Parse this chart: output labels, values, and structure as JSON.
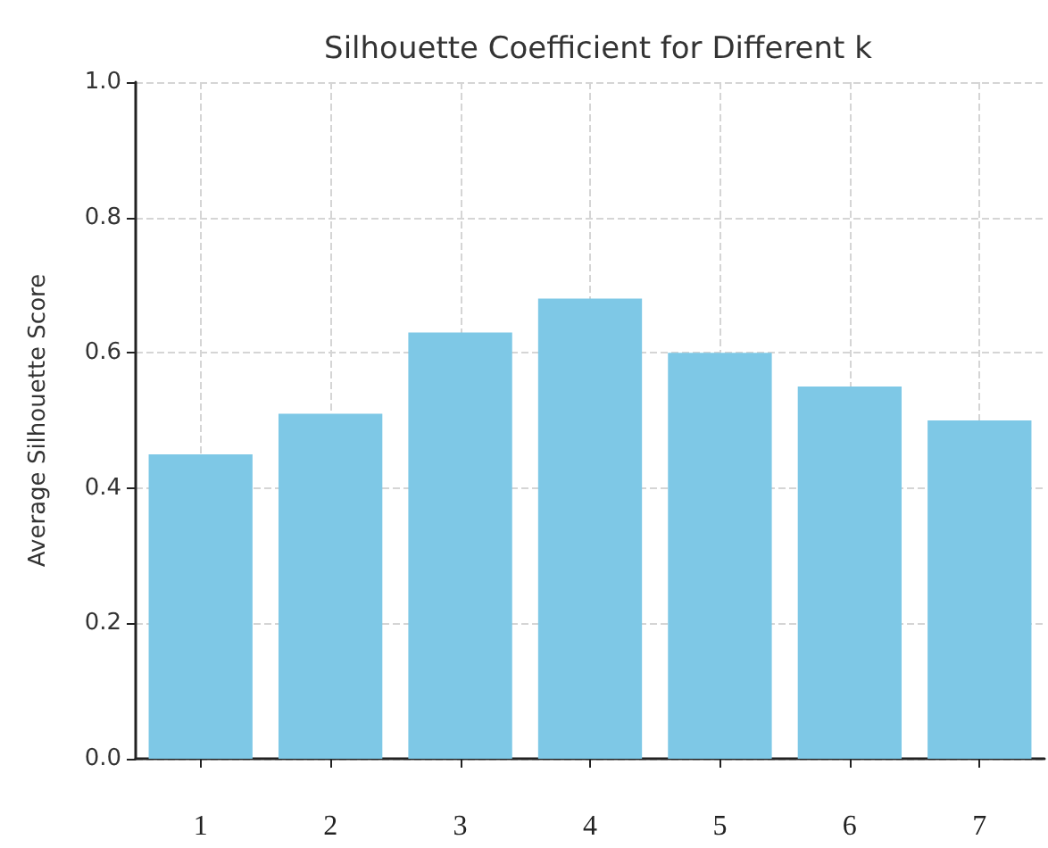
{
  "chart_data": {
    "type": "bar",
    "title": "Silhouette Coefficient for Different k",
    "ylabel": "Average Silhouette Score",
    "categories": [
      "1",
      "2",
      "3",
      "4",
      "5",
      "6",
      "7"
    ],
    "values": [
      0.45,
      0.51,
      0.63,
      0.68,
      0.6,
      0.55,
      0.5
    ],
    "color": "#7ec8e6",
    "ylim": [
      0,
      1.0
    ],
    "yticks": [
      {
        "value": 0,
        "label": "0.0"
      },
      0.2,
      0.4,
      0.6,
      0.8,
      {
        "value": 1.0,
        "label": "1.0"
      }
    ],
    "grid": true
  }
}
